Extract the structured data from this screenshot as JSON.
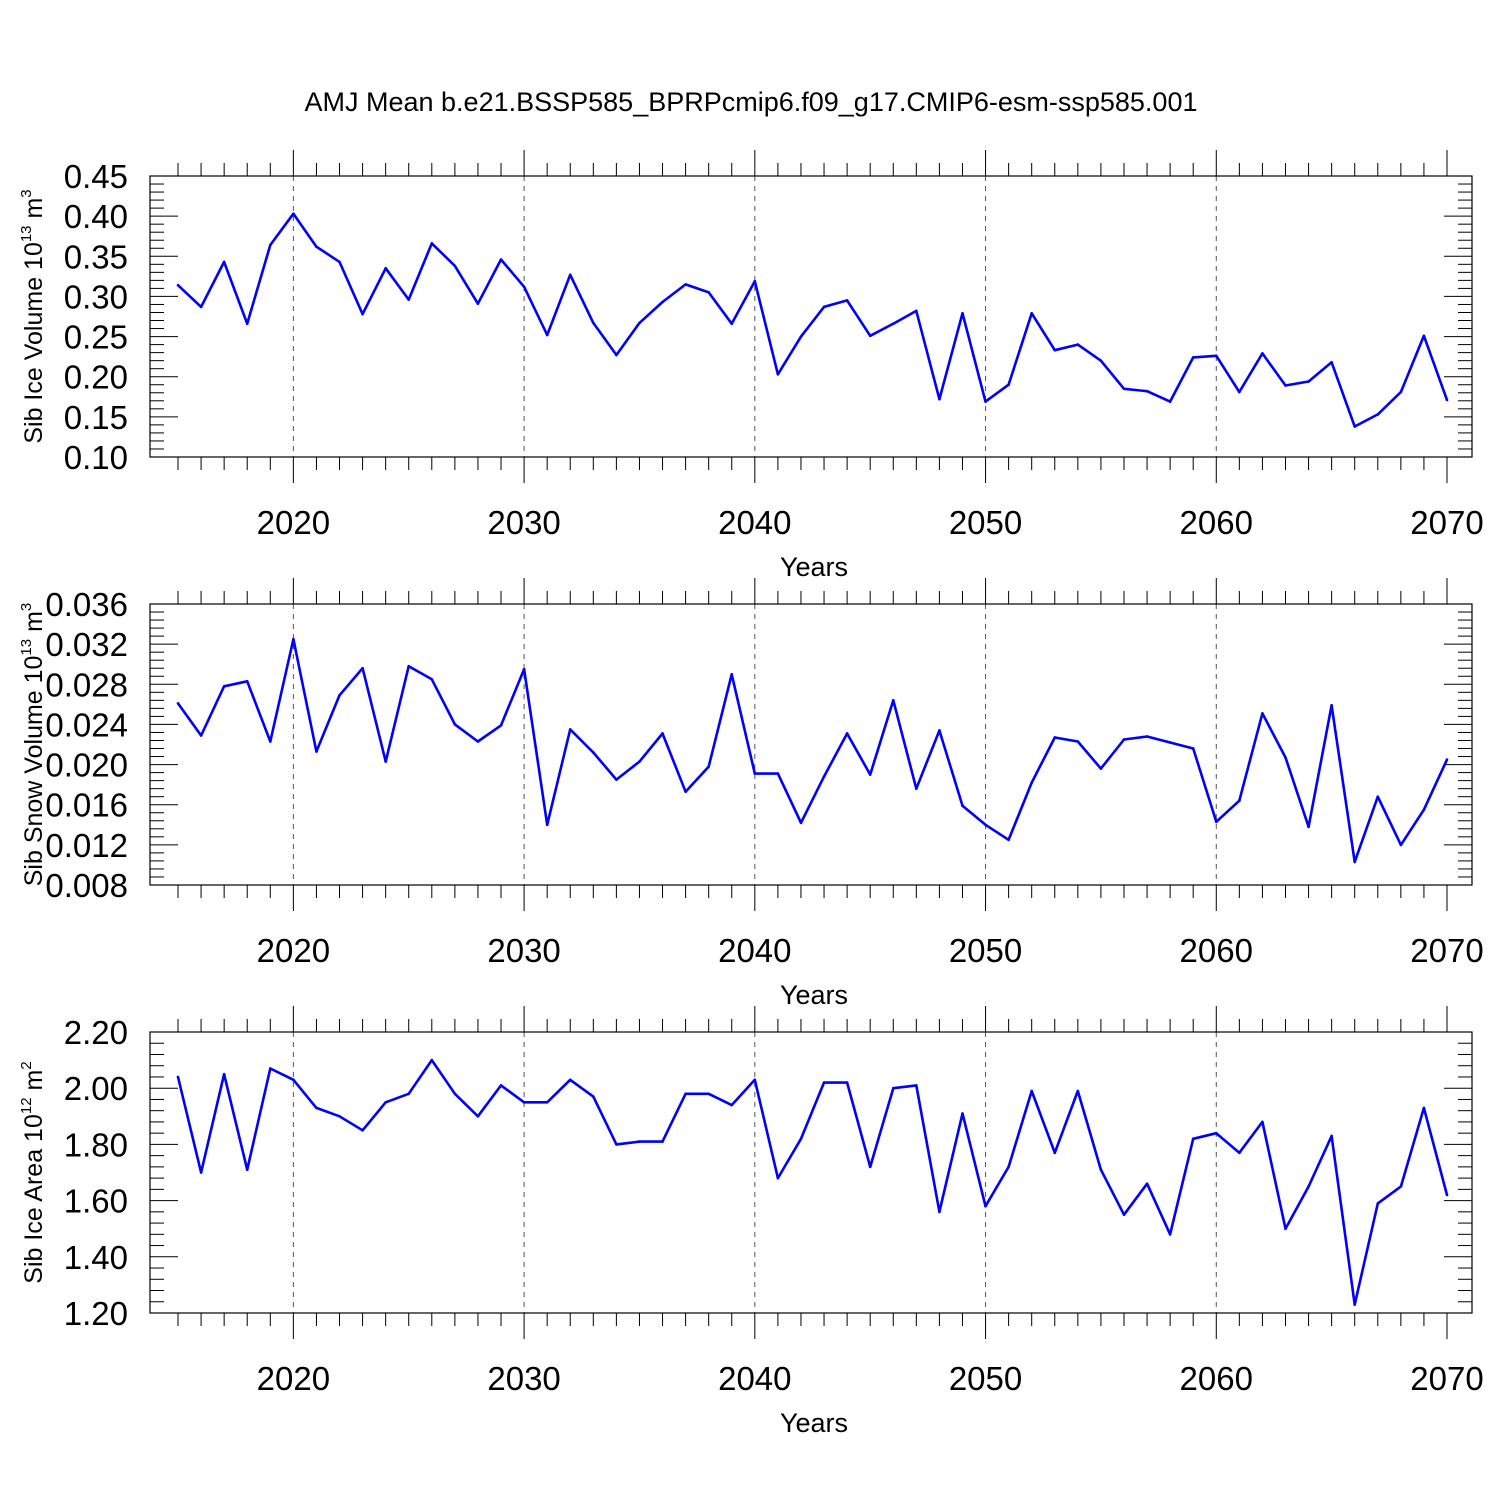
{
  "title": "AMJ Mean b.e21.BSSP585_BPRPcmip6.f09_g17.CMIP6-esm-ssp585.001",
  "chart_data": [
    {
      "type": "line",
      "ylabel": {
        "prefix": "Sib Ice Volume 10",
        "exp": "13",
        "unit": " m",
        "unit_exp": "3"
      },
      "xlabel": "Years",
      "xlim": [
        2015,
        2070
      ],
      "xticks": [
        2020,
        2030,
        2040,
        2050,
        2060,
        2070
      ],
      "ylim": [
        0.1,
        0.45
      ],
      "yticks": [
        "0.10",
        "0.15",
        "0.20",
        "0.25",
        "0.30",
        "0.35",
        "0.40",
        "0.45"
      ],
      "grid": "vertical dashed at major ticks",
      "color": "#0000ff",
      "x": [
        2015,
        2016,
        2017,
        2018,
        2019,
        2020,
        2021,
        2022,
        2023,
        2024,
        2025,
        2026,
        2027,
        2028,
        2029,
        2030,
        2031,
        2032,
        2033,
        2034,
        2035,
        2036,
        2037,
        2038,
        2039,
        2040,
        2041,
        2042,
        2043,
        2044,
        2045,
        2046,
        2047,
        2048,
        2049,
        2050,
        2051,
        2052,
        2053,
        2054,
        2055,
        2056,
        2057,
        2058,
        2059,
        2060,
        2061,
        2062,
        2063,
        2064,
        2065,
        2066,
        2067,
        2068,
        2069,
        2070
      ],
      "values": [
        0.314,
        0.287,
        0.343,
        0.266,
        0.364,
        0.403,
        0.362,
        0.343,
        0.278,
        0.335,
        0.296,
        0.366,
        0.338,
        0.291,
        0.346,
        0.312,
        0.252,
        0.327,
        0.267,
        0.227,
        0.267,
        0.293,
        0.315,
        0.305,
        0.266,
        0.319,
        0.203,
        0.25,
        0.287,
        0.295,
        0.251,
        0.266,
        0.282,
        0.172,
        0.279,
        0.169,
        0.19,
        0.279,
        0.233,
        0.24,
        0.22,
        0.185,
        0.182,
        0.169,
        0.224,
        0.226,
        0.181,
        0.229,
        0.189,
        0.194,
        0.218,
        0.138,
        0.153,
        0.181,
        0.251,
        0.171
      ]
    },
    {
      "type": "line",
      "ylabel": {
        "prefix": "Sib Snow Volume 10",
        "exp": "13",
        "unit": " m",
        "unit_exp": "3"
      },
      "xlabel": "Years",
      "xlim": [
        2015,
        2070
      ],
      "xticks": [
        2020,
        2030,
        2040,
        2050,
        2060,
        2070
      ],
      "ylim": [
        0.008,
        0.036
      ],
      "yticks": [
        "0.008",
        "0.012",
        "0.016",
        "0.020",
        "0.024",
        "0.028",
        "0.032",
        "0.036"
      ],
      "grid": "vertical dashed at major ticks",
      "color": "#0000ff",
      "x": [
        2015,
        2016,
        2017,
        2018,
        2019,
        2020,
        2021,
        2022,
        2023,
        2024,
        2025,
        2026,
        2027,
        2028,
        2029,
        2030,
        2031,
        2032,
        2033,
        2034,
        2035,
        2036,
        2037,
        2038,
        2039,
        2040,
        2041,
        2042,
        2043,
        2044,
        2045,
        2046,
        2047,
        2048,
        2049,
        2050,
        2051,
        2052,
        2053,
        2054,
        2055,
        2056,
        2057,
        2058,
        2059,
        2060,
        2061,
        2062,
        2063,
        2064,
        2065,
        2066,
        2067,
        2068,
        2069,
        2070
      ],
      "values": [
        0.0261,
        0.0229,
        0.0278,
        0.0283,
        0.0223,
        0.0325,
        0.0213,
        0.0269,
        0.0296,
        0.0203,
        0.0298,
        0.0285,
        0.024,
        0.0223,
        0.0239,
        0.0295,
        0.014,
        0.0235,
        0.0212,
        0.0185,
        0.0203,
        0.0231,
        0.0173,
        0.0198,
        0.029,
        0.0191,
        0.0191,
        0.0142,
        0.0188,
        0.0231,
        0.019,
        0.0264,
        0.0176,
        0.0234,
        0.0159,
        0.014,
        0.0125,
        0.0182,
        0.0227,
        0.0223,
        0.0196,
        0.0225,
        0.0228,
        0.0222,
        0.0216,
        0.0143,
        0.0164,
        0.0251,
        0.0207,
        0.0138,
        0.0259,
        0.0103,
        0.0168,
        0.012,
        0.0155,
        0.0205
      ]
    },
    {
      "type": "line",
      "ylabel": {
        "prefix": "Sib Ice Area 10",
        "exp": "12",
        "unit": " m",
        "unit_exp": "2"
      },
      "xlabel": "Years",
      "xlim": [
        2015,
        2070
      ],
      "xticks": [
        2020,
        2030,
        2040,
        2050,
        2060,
        2070
      ],
      "ylim": [
        1.2,
        2.2
      ],
      "yticks": [
        "1.20",
        "1.40",
        "1.60",
        "1.80",
        "2.00",
        "2.20"
      ],
      "grid": "vertical dashed at major ticks",
      "color": "#0000ff",
      "x": [
        2015,
        2016,
        2017,
        2018,
        2019,
        2020,
        2021,
        2022,
        2023,
        2024,
        2025,
        2026,
        2027,
        2028,
        2029,
        2030,
        2031,
        2032,
        2033,
        2034,
        2035,
        2036,
        2037,
        2038,
        2039,
        2040,
        2041,
        2042,
        2043,
        2044,
        2045,
        2046,
        2047,
        2048,
        2049,
        2050,
        2051,
        2052,
        2053,
        2054,
        2055,
        2056,
        2057,
        2058,
        2059,
        2060,
        2061,
        2062,
        2063,
        2064,
        2065,
        2066,
        2067,
        2068,
        2069,
        2070
      ],
      "values": [
        2.04,
        1.7,
        2.05,
        1.71,
        2.07,
        2.03,
        1.93,
        1.9,
        1.85,
        1.95,
        1.98,
        2.1,
        1.98,
        1.9,
        2.01,
        1.95,
        1.95,
        2.03,
        1.97,
        1.8,
        1.81,
        1.81,
        1.98,
        1.98,
        1.94,
        2.03,
        1.68,
        1.82,
        2.02,
        2.02,
        1.72,
        2.0,
        2.01,
        1.56,
        1.91,
        1.58,
        1.72,
        1.99,
        1.77,
        1.99,
        1.71,
        1.55,
        1.66,
        1.48,
        1.82,
        1.84,
        1.77,
        1.88,
        1.5,
        1.65,
        1.83,
        1.23,
        1.59,
        1.65,
        1.93,
        1.62
      ]
    }
  ]
}
